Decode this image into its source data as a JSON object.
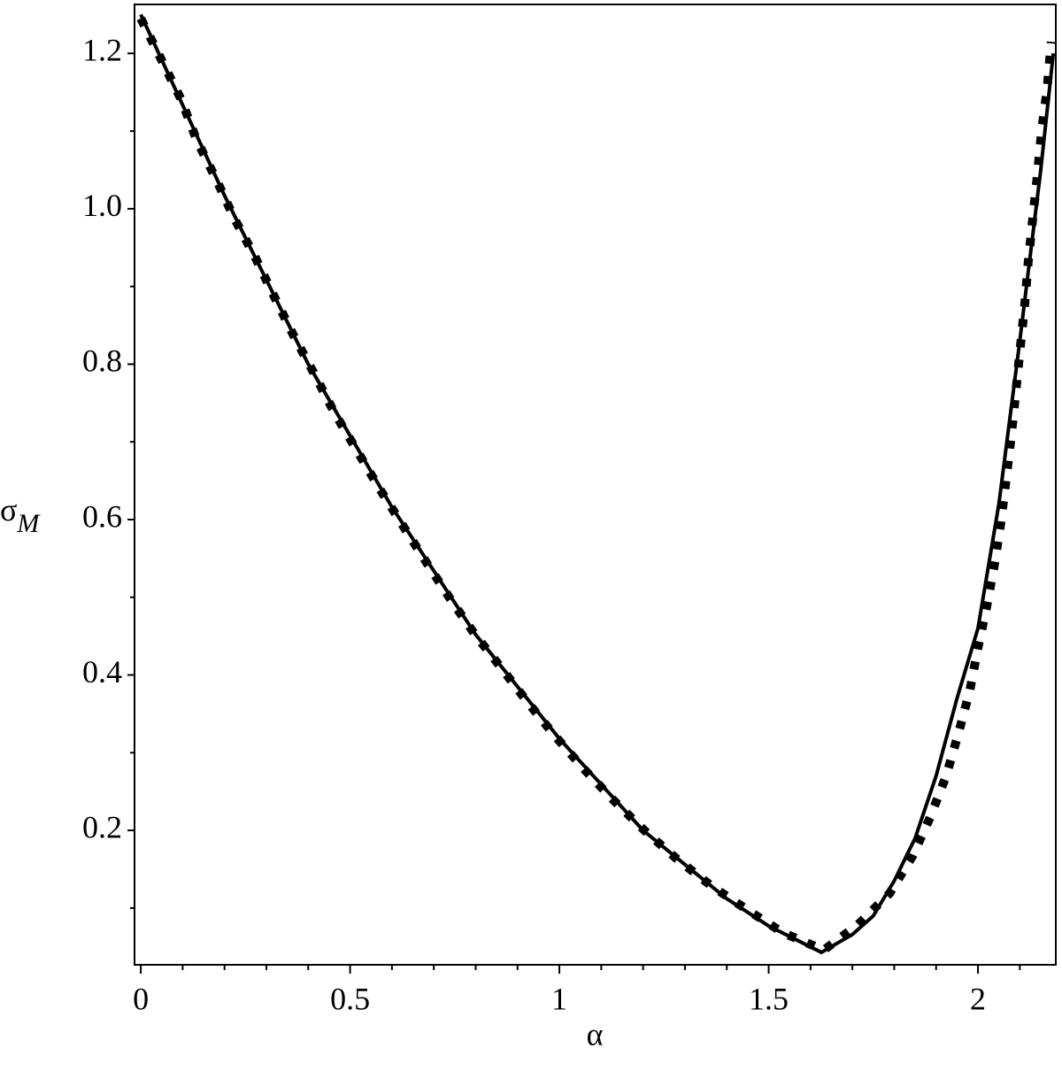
{
  "chart_data": {
    "type": "line",
    "xlabel": "α",
    "ylabel": {
      "symbol": "σ",
      "subscript": "M"
    },
    "xlim": [
      -0.015,
      2.186
    ],
    "ylim": [
      0.027,
      1.263
    ],
    "xticks": [
      0,
      0.5,
      1,
      1.5,
      2
    ],
    "yticks": [
      0.2,
      0.4,
      0.6,
      0.8,
      {
        "value": 1,
        "label": "1.0"
      },
      1.2
    ],
    "xminorticks": [
      0.1,
      0.2,
      0.3,
      0.4,
      0.6,
      0.7,
      0.8,
      0.9,
      1.1,
      1.2,
      1.3,
      1.4,
      1.6,
      1.7,
      1.8,
      1.9,
      2.1
    ],
    "yminorticks": [
      0.1,
      0.3,
      0.5,
      0.7,
      0.9,
      1.1
    ],
    "grid": false,
    "series": [
      {
        "color": "#000000",
        "style": "solid",
        "x": [
          0,
          0.2,
          0.4,
          0.6,
          0.8,
          1.0,
          1.2,
          1.4,
          1.5,
          1.626,
          1.7,
          1.75,
          1.8,
          1.85,
          1.9,
          1.95,
          2.0,
          2.05,
          2.1,
          2.15,
          2.18
        ],
        "values": [
          1.25,
          1.017,
          0.8,
          0.616,
          0.452,
          0.318,
          0.2,
          0.112,
          0.077,
          0.043,
          0.066,
          0.09,
          0.135,
          0.19,
          0.27,
          0.37,
          0.46,
          0.62,
          0.83,
          1.05,
          1.2
        ]
      },
      {
        "color": "#000000",
        "style": "dot",
        "x": [
          0,
          0.049,
          0.097,
          0.133,
          0.18,
          0.224,
          0.273,
          0.317,
          0.364,
          0.414,
          0.463,
          0.514,
          0.569,
          0.624,
          0.681,
          0.738,
          0.797,
          0.86,
          0.924,
          0.989,
          1.057,
          1.129,
          1.203,
          1.279,
          1.362,
          1.448,
          1.535,
          1.632,
          1.712,
          1.789,
          1.844,
          1.886,
          1.924,
          1.953,
          1.981,
          2.0,
          2.021,
          2.04,
          2.055,
          2.068,
          2.08,
          2.091,
          2.101,
          2.112,
          2.12,
          2.131,
          2.142,
          2.152,
          2.165,
          2.175
        ],
        "values": [
          1.245,
          1.192,
          1.14,
          1.089,
          1.038,
          0.987,
          0.938,
          0.889,
          0.838,
          0.788,
          0.737,
          0.691,
          0.641,
          0.594,
          0.546,
          0.499,
          0.453,
          0.41,
          0.365,
          0.322,
          0.28,
          0.239,
          0.2,
          0.164,
          0.129,
          0.098,
          0.068,
          0.046,
          0.078,
          0.119,
          0.167,
          0.217,
          0.27,
          0.324,
          0.381,
          0.435,
          0.488,
          0.544,
          0.597,
          0.655,
          0.709,
          0.767,
          0.821,
          0.878,
          0.931,
          0.988,
          1.044,
          1.1,
          1.153,
          1.215
        ]
      }
    ]
  }
}
